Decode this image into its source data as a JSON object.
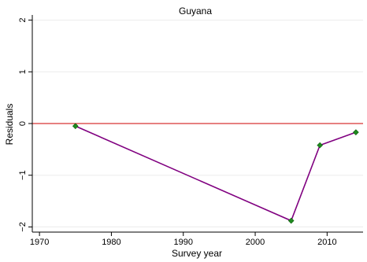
{
  "chart_data": {
    "type": "line",
    "title": "Guyana",
    "xlabel": "Survey year",
    "ylabel": "Residuals",
    "xlim": [
      1969,
      2015
    ],
    "ylim": [
      -2.1,
      2.1
    ],
    "xticks": [
      1970,
      1980,
      1990,
      2000,
      2010
    ],
    "yticks": [
      -2,
      -1,
      0,
      1,
      2
    ],
    "ytick_labels": [
      "−2",
      "−1",
      "0",
      "1",
      "2"
    ],
    "grid": true,
    "reference_line": {
      "y": 0,
      "color": "#cc0000"
    },
    "series": [
      {
        "color": "#800080",
        "marker_color": "#1f8a1f",
        "marker": "diamond",
        "x": [
          1975,
          2005,
          2009,
          2014
        ],
        "y": [
          -0.05,
          -1.88,
          -0.42,
          -0.17
        ]
      }
    ]
  }
}
